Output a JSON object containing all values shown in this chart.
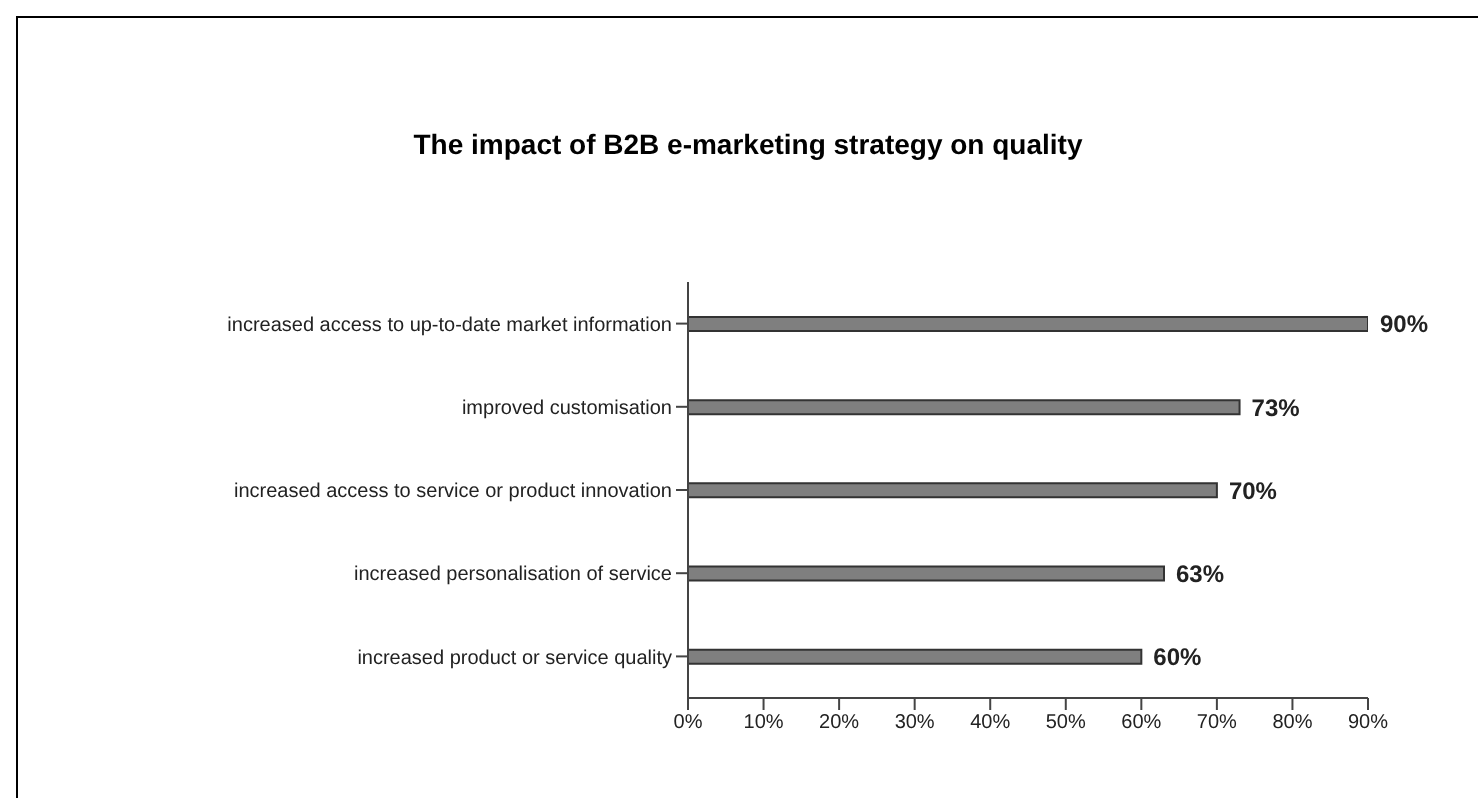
{
  "chart_data": {
    "type": "bar",
    "orientation": "horizontal",
    "title": "The impact of B2B e-marketing strategy on quality",
    "categories": [
      "increased access to up-to-date market information",
      "improved customisation",
      "increased access to service or product innovation",
      "increased personalisation of service",
      "increased product or service quality"
    ],
    "values": [
      90,
      73,
      70,
      63,
      60
    ],
    "value_labels": [
      "90%",
      "73%",
      "70%",
      "63%",
      "60%"
    ],
    "color": "#7f7f7f",
    "xlim": [
      0,
      90
    ],
    "xticks": [
      {
        "value": 0,
        "label": "0%"
      },
      {
        "value": 10,
        "label": "10%"
      },
      {
        "value": 20,
        "label": "20%"
      },
      {
        "value": 30,
        "label": "30%"
      },
      {
        "value": 40,
        "label": "40%"
      },
      {
        "value": 50,
        "label": "50%"
      },
      {
        "value": 60,
        "label": "60%"
      },
      {
        "value": 70,
        "label": "70%"
      },
      {
        "value": 80,
        "label": "80%"
      },
      {
        "value": 90,
        "label": "90%"
      }
    ],
    "grid": false,
    "legend": false
  }
}
